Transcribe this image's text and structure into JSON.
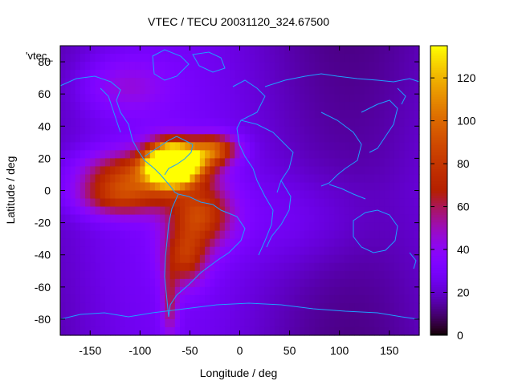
{
  "chart_data": {
    "type": "heatmap",
    "title": "VTEC / TECU 20031120_324.67500",
    "xlabel": "Longitude / deg",
    "ylabel": "Latitude / deg",
    "key_label": "'vtec_",
    "xlim": [
      -180,
      180
    ],
    "ylim": [
      -90,
      90
    ],
    "x_ticks": [
      -150,
      -100,
      -50,
      0,
      50,
      100,
      150
    ],
    "y_ticks": [
      -80,
      -60,
      -40,
      -20,
      0,
      20,
      40,
      60,
      80
    ],
    "colorbar_range": [
      0,
      135
    ],
    "colorbar_ticks": [
      0,
      20,
      40,
      60,
      80,
      100,
      120
    ],
    "colormap": "gnuplot",
    "features": [
      {
        "lon": -70,
        "lat": 16,
        "value": 135,
        "sx": 16,
        "sy": 9
      },
      {
        "lon": -55,
        "lat": 18,
        "value": 70,
        "sx": 22,
        "sy": 8
      },
      {
        "lon": -25,
        "lat": 26,
        "value": 55,
        "sx": 16,
        "sy": 6
      },
      {
        "lon": -110,
        "lat": 10,
        "value": 50,
        "sx": 35,
        "sy": 10
      },
      {
        "lon": -120,
        "lat": -5,
        "value": 40,
        "sx": 30,
        "sy": 8
      },
      {
        "lon": -40,
        "lat": -15,
        "value": 55,
        "sx": 22,
        "sy": 14
      },
      {
        "lon": -55,
        "lat": -42,
        "value": 45,
        "sx": 15,
        "sy": 12
      },
      {
        "lon": -70,
        "lat": -70,
        "value": 30,
        "sx": 6,
        "sy": 15
      },
      {
        "lon": -115,
        "lat": 65,
        "value": 18,
        "sx": 30,
        "sy": 12
      },
      {
        "lon": 60,
        "lat": -20,
        "value": 8,
        "sx": 50,
        "sy": 20
      }
    ]
  }
}
